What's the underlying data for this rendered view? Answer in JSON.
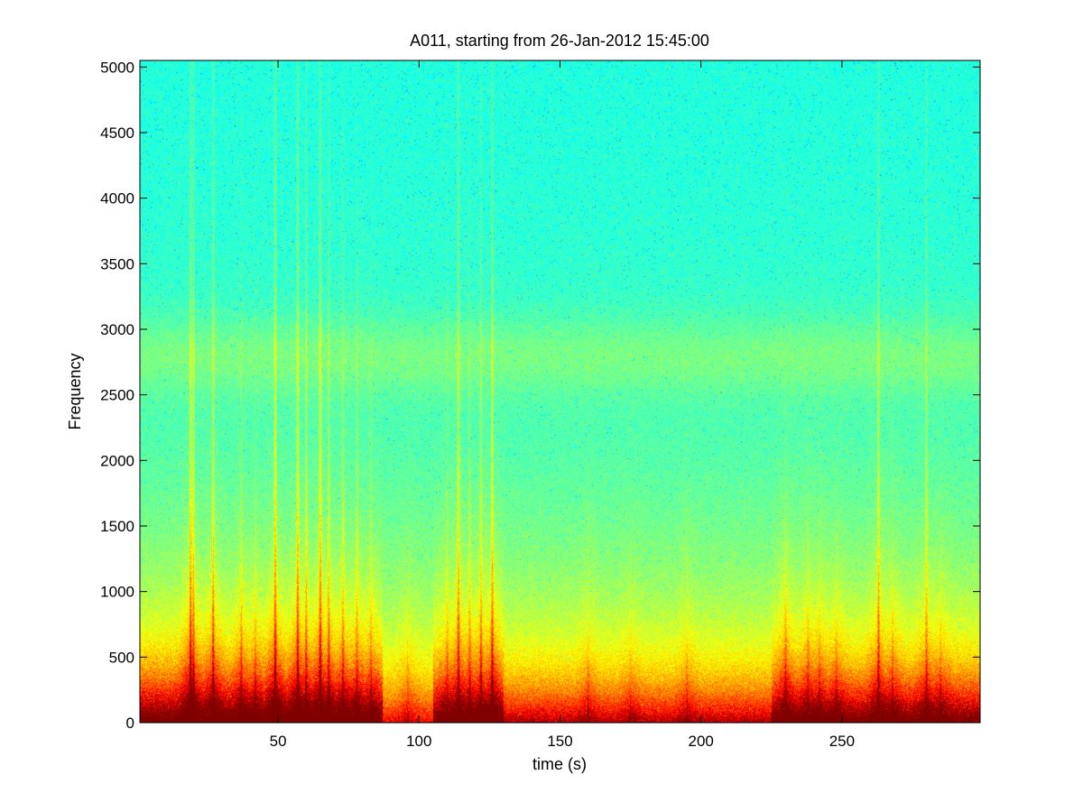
{
  "chart_data": {
    "type": "heatmap",
    "title": "A011, starting from 26-Jan-2012 15:45:00",
    "xlabel": "time (s)",
    "ylabel": "Frequency",
    "xlim": [
      1,
      299
    ],
    "ylim": [
      0,
      5050
    ],
    "xticks": [
      50,
      100,
      150,
      200,
      250
    ],
    "yticks": [
      0,
      500,
      1000,
      1500,
      2000,
      2500,
      3000,
      3500,
      4000,
      4500,
      5000
    ],
    "colormap": "jet",
    "colors": {
      "high": "#c81e00",
      "mid_high": "#f0f000",
      "mid": "#64f08c",
      "low": "#00e6e6",
      "deep": "#1a8cd0"
    },
    "background_band": {
      "frequency_center": 2800,
      "frequency_width": 300
    },
    "events": [
      {
        "t": 19,
        "intensity": 1.0,
        "max_freq": 5050
      },
      {
        "t": 20,
        "intensity": 0.8,
        "max_freq": 5050
      },
      {
        "t": 27,
        "intensity": 0.85,
        "max_freq": 5050
      },
      {
        "t": 37,
        "intensity": 0.6,
        "max_freq": 2800
      },
      {
        "t": 42,
        "intensity": 0.5,
        "max_freq": 2000
      },
      {
        "t": 49,
        "intensity": 1.0,
        "max_freq": 5050
      },
      {
        "t": 57,
        "intensity": 1.0,
        "max_freq": 5050
      },
      {
        "t": 60,
        "intensity": 0.7,
        "max_freq": 4500
      },
      {
        "t": 65,
        "intensity": 1.0,
        "max_freq": 5050
      },
      {
        "t": 68,
        "intensity": 0.75,
        "max_freq": 4000
      },
      {
        "t": 73,
        "intensity": 0.65,
        "max_freq": 3600
      },
      {
        "t": 78,
        "intensity": 0.6,
        "max_freq": 3200
      },
      {
        "t": 83,
        "intensity": 0.5,
        "max_freq": 2400
      },
      {
        "t": 96,
        "intensity": 0.35,
        "max_freq": 1200
      },
      {
        "t": 110,
        "intensity": 0.45,
        "max_freq": 2400
      },
      {
        "t": 114,
        "intensity": 0.85,
        "max_freq": 5050
      },
      {
        "t": 118,
        "intensity": 0.6,
        "max_freq": 3000
      },
      {
        "t": 122,
        "intensity": 0.7,
        "max_freq": 4000
      },
      {
        "t": 126,
        "intensity": 0.9,
        "max_freq": 5050
      },
      {
        "t": 160,
        "intensity": 0.35,
        "max_freq": 1400
      },
      {
        "t": 175,
        "intensity": 0.3,
        "max_freq": 1200
      },
      {
        "t": 195,
        "intensity": 0.35,
        "max_freq": 1400
      },
      {
        "t": 230,
        "intensity": 0.75,
        "max_freq": 1700
      },
      {
        "t": 238,
        "intensity": 0.6,
        "max_freq": 1500
      },
      {
        "t": 242,
        "intensity": 0.55,
        "max_freq": 1400
      },
      {
        "t": 248,
        "intensity": 0.5,
        "max_freq": 1300
      },
      {
        "t": 263,
        "intensity": 0.8,
        "max_freq": 5050
      },
      {
        "t": 268,
        "intensity": 0.55,
        "max_freq": 1600
      },
      {
        "t": 280,
        "intensity": 0.6,
        "max_freq": 5050
      },
      {
        "t": 285,
        "intensity": 0.45,
        "max_freq": 1400
      }
    ],
    "low_freq_activity": [
      {
        "t_start": 1,
        "t_end": 87,
        "level": 0.9
      },
      {
        "t_start": 87,
        "t_end": 105,
        "level": 0.35
      },
      {
        "t_start": 105,
        "t_end": 130,
        "level": 0.85
      },
      {
        "t_start": 130,
        "t_end": 225,
        "level": 0.5
      },
      {
        "t_start": 225,
        "t_end": 299,
        "level": 0.8
      }
    ]
  }
}
